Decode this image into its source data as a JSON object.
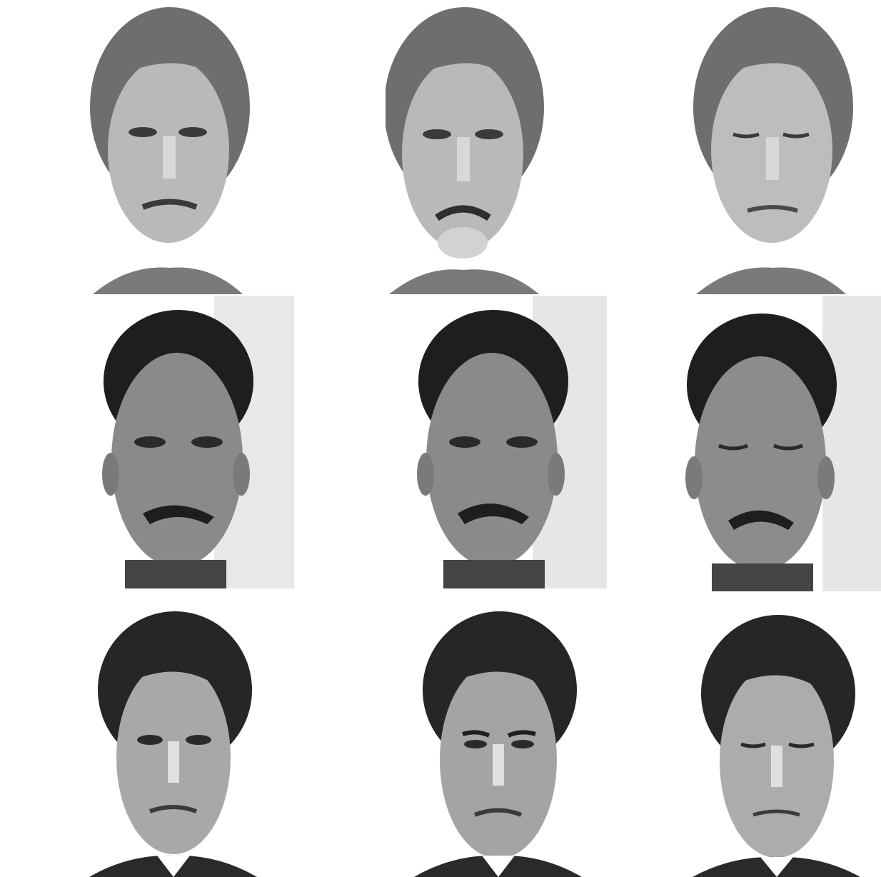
{
  "grid": {
    "rows": 3,
    "columns": 3
  },
  "subjects": [
    {
      "row": 1,
      "hair": "light",
      "expressions": [
        "neutral",
        "sad",
        "eyes-closed"
      ],
      "background": "white"
    },
    {
      "row": 2,
      "hair": "dark",
      "facial_hair": "mustache",
      "expressions": [
        "neutral",
        "neutral",
        "eyes-closed"
      ],
      "background": "textured-wall"
    },
    {
      "row": 3,
      "hair": "dark",
      "expressions": [
        "neutral",
        "frown",
        "eyes-closed"
      ],
      "background": "white"
    }
  ],
  "colors": {
    "background": "#ffffff",
    "skin_light": "#b9b9b9",
    "skin_dark": "#8a8a8a",
    "hair_light": "#6e6e6e",
    "hair_dark": "#1e1e1e",
    "wall": "#e8e8e8"
  }
}
